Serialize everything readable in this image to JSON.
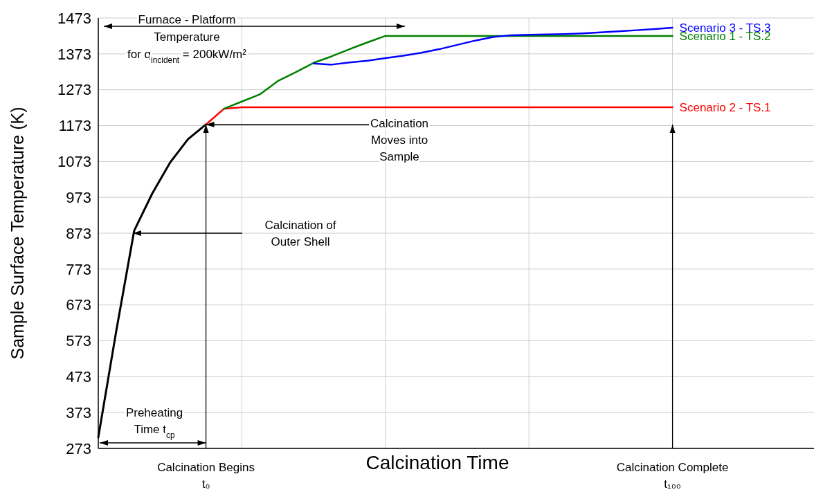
{
  "chart_data": {
    "type": "line",
    "xlabel": "Calcination Time",
    "ylabel": "Sample Surface Temperature (K)",
    "categories": [
      null,
      null,
      null,
      null,
      null,
      null,
      null,
      null,
      null,
      null,
      null,
      null,
      null,
      null,
      null,
      null,
      null,
      null,
      null,
      null,
      null,
      null,
      null,
      null,
      null,
      null,
      null,
      null,
      null,
      null,
      null,
      null,
      null
    ],
    "ylim": [
      273,
      1473
    ],
    "yticks": [
      273,
      373,
      473,
      573,
      673,
      773,
      873,
      973,
      1073,
      1173,
      1273,
      1373,
      1473
    ],
    "grid": true,
    "line_style": "solid",
    "series": [
      {
        "color": "#000000",
        "values": [
          304,
          600,
          880,
          983,
          1070,
          1135,
          1176,
          null,
          null,
          null,
          null,
          null,
          null,
          null,
          null,
          null,
          null,
          null,
          null,
          null,
          null,
          null,
          null,
          null,
          null,
          null,
          null,
          null,
          null,
          null,
          null,
          null,
          null
        ]
      },
      {
        "name": "Scenario 2 - TS.1",
        "color": "#ff0000",
        "values": [
          null,
          null,
          null,
          null,
          null,
          null,
          1176,
          1220,
          1224,
          1224,
          1224,
          1224,
          1224,
          1224,
          1224,
          1224,
          1224,
          1224,
          1224,
          1224,
          1224,
          1224,
          1224,
          1224,
          1224,
          1224,
          1224,
          1224,
          1224,
          1224,
          1224,
          1224,
          1224
        ]
      },
      {
        "name": "Scenario 1 - TS.2",
        "color": "#008000",
        "values": [
          null,
          null,
          null,
          null,
          null,
          null,
          null,
          1220,
          1240,
          1260,
          1297,
          1322,
          1348,
          1366,
          1386,
          1405,
          1423,
          1423,
          1423,
          1423,
          1423,
          1423,
          1423,
          1423,
          1423,
          1423,
          1423,
          1423,
          1423,
          1423,
          1423,
          1423,
          1423
        ]
      },
      {
        "name": "Scenario 3 - TS.3",
        "color": "#0000ff",
        "values": [
          null,
          null,
          null,
          null,
          null,
          null,
          null,
          null,
          null,
          null,
          null,
          null,
          1346,
          1343,
          1349,
          1354,
          1361,
          1368,
          1376,
          1386,
          1398,
          1410,
          1420,
          1425,
          1426,
          1427,
          1428,
          1430,
          1433,
          1436,
          1439,
          1442,
          1446
        ]
      }
    ],
    "annotations": [
      "Furnace - Platform\nTemperature\nfor q$_{incident}$ = 200kW/m²",
      "Calcination\nMoves into\nSample",
      "Calcination of\nOuter Shell",
      "Preheating\nTime t$_{cp}$",
      "Calcination Begins\nt₀",
      "Calcination Complete\nt₁₀₀"
    ]
  }
}
